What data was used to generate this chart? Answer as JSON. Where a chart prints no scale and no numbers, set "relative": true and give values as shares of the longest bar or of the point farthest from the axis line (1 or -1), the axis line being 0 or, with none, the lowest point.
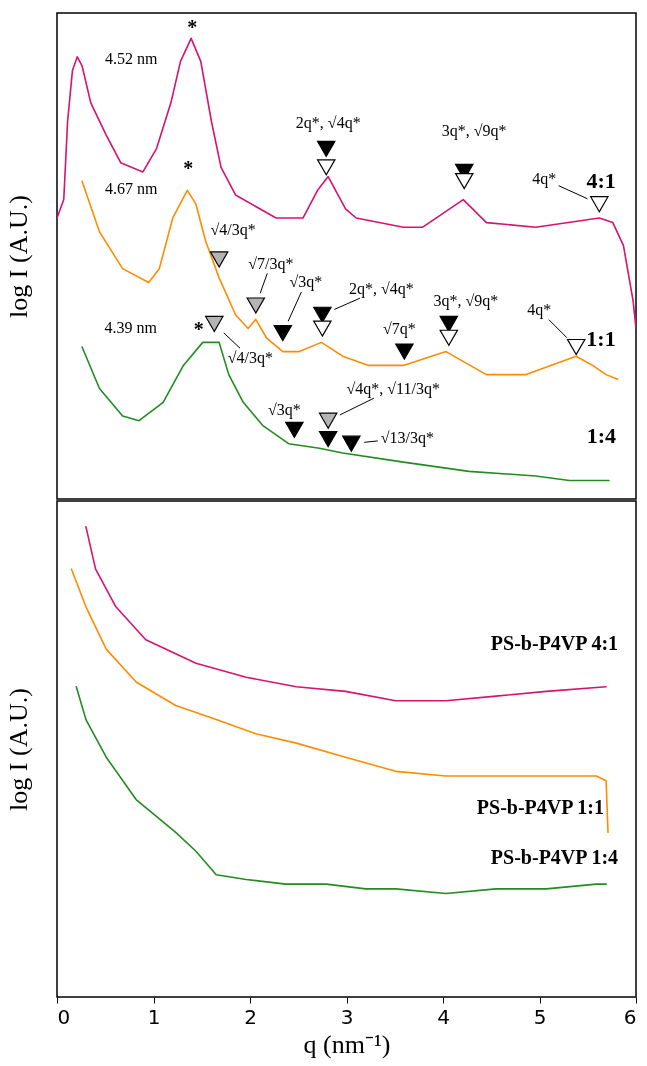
{
  "chart_data": [
    {
      "type": "line",
      "ylabel": "log I (A.U.)",
      "xlim": [
        0,
        6
      ],
      "tick_labels": false,
      "relative": true,
      "series": [
        {
          "name": "4:1",
          "color": "#d6136f",
          "x": [
            0,
            0.07,
            0.11,
            0.16,
            0.21,
            0.26,
            0.35,
            0.51,
            0.66,
            0.89,
            1.03,
            1.18,
            1.28,
            1.39,
            1.49,
            1.6,
            1.7,
            1.85,
            2.27,
            2.55,
            2.7,
            2.81,
            2.99,
            3.1,
            3.59,
            3.79,
            4.21,
            4.45,
            4.96,
            5.62,
            5.76,
            5.87,
            5.97,
            6.0
          ],
          "values": [
            0.61,
            0.65,
            0.82,
            0.93,
            0.96,
            0.94,
            0.86,
            0.79,
            0.73,
            0.71,
            0.76,
            0.86,
            0.95,
            1,
            0.95,
            0.82,
            0.72,
            0.66,
            0.61,
            0.61,
            0.67,
            0.7,
            0.63,
            0.61,
            0.59,
            0.59,
            0.65,
            0.6,
            0.59,
            0.61,
            0.6,
            0.55,
            0.43,
            0.37
          ]
        },
        {
          "name": "1:1",
          "color": "#ff8c00",
          "x": [
            0.26,
            0.44,
            0.68,
            0.95,
            1.06,
            1.2,
            1.35,
            1.44,
            1.54,
            1.68,
            1.85,
            1.98,
            2.06,
            2.17,
            2.34,
            2.51,
            2.74,
            2.96,
            3.23,
            3.59,
            4.03,
            4.45,
            4.86,
            5.38,
            5.55,
            5.69,
            5.81
          ],
          "values": [
            0.69,
            0.58,
            0.5,
            0.47,
            0.5,
            0.61,
            0.67,
            0.64,
            0.56,
            0.48,
            0.4,
            0.37,
            0.39,
            0.35,
            0.32,
            0.32,
            0.34,
            0.31,
            0.29,
            0.29,
            0.32,
            0.27,
            0.27,
            0.31,
            0.29,
            0.27,
            0.26
          ]
        },
        {
          "name": "1:4",
          "color": "#228b22",
          "x": [
            0.26,
            0.44,
            0.68,
            0.85,
            1.1,
            1.31,
            1.51,
            1.68,
            1.78,
            1.93,
            2.13,
            2.4,
            2.72,
            2.96,
            3.59,
            4.27,
            4.96,
            5.31,
            5.72
          ],
          "values": [
            0.33,
            0.24,
            0.18,
            0.17,
            0.21,
            0.29,
            0.34,
            0.34,
            0.27,
            0.21,
            0.16,
            0.12,
            0.11,
            0.1,
            0.08,
            0.06,
            0.05,
            0.04,
            0.04
          ]
        },
        {
          "type": "scatter",
          "marker": "triangle",
          "color": "#000000",
          "x": [
            2.79,
            4.22,
            2.34,
            2.75,
            3.6,
            4.06,
            2.46,
            2.81,
            3.05
          ],
          "values": [
            0.76,
            0.71,
            0.36,
            0.4,
            0.32,
            0.38,
            0.15,
            0.13,
            0.12
          ]
        },
        {
          "type": "scatter",
          "marker": "triangle",
          "color": "#ffffff",
          "x": [
            2.79,
            4.22,
            5.62,
            2.75,
            4.06,
            5.38
          ],
          "values": [
            0.72,
            0.69,
            0.64,
            0.37,
            0.35,
            0.33
          ]
        },
        {
          "type": "scatter",
          "marker": "triangle",
          "color": "#b4b4b4",
          "x": [
            1.68,
            2.06,
            1.63,
            2.81
          ],
          "values": [
            0.52,
            0.42,
            0.38,
            0.17
          ]
        }
      ],
      "annotations": [
        {
          "text": "4.52 nm",
          "x": 1.39,
          "y": 1
        },
        {
          "text": "4.67 nm",
          "x": 1.35,
          "y": 0.67
        },
        {
          "text": "4.39 nm",
          "x": 1.51,
          "y": 0.34
        },
        {
          "text": "*",
          "x": 1.39,
          "y": 1
        },
        {
          "text": "*",
          "x": 1.35,
          "y": 0.67
        },
        {
          "text": "*",
          "x": 1.51,
          "y": 0.34
        },
        {
          "text": "2q*, √4q*",
          "x": 2.79,
          "y": 0.76
        },
        {
          "text": "3q*, √9q*",
          "x": 4.22,
          "y": 0.71
        },
        {
          "text": "4q*",
          "x": 5.62,
          "y": 0.64
        },
        {
          "text": "√4/3q*",
          "x": 1.68,
          "y": 0.52
        },
        {
          "text": "√7/3q*",
          "x": 2.06,
          "y": 0.42
        },
        {
          "text": "√3q*",
          "x": 2.34,
          "y": 0.36
        },
        {
          "text": "2q*, √4q*",
          "x": 2.75,
          "y": 0.4
        },
        {
          "text": "√7q*",
          "x": 3.6,
          "y": 0.32
        },
        {
          "text": "3q*, √9q*",
          "x": 4.06,
          "y": 0.38
        },
        {
          "text": "4q*",
          "x": 5.38,
          "y": 0.33
        },
        {
          "text": "√4/3q*",
          "x": 1.63,
          "y": 0.38
        },
        {
          "text": "√3q*",
          "x": 2.46,
          "y": 0.15
        },
        {
          "text": "√4q*, √11/3q*",
          "x": 2.81,
          "y": 0.17
        },
        {
          "text": "√13/3q*",
          "x": 3.05,
          "y": 0.12
        }
      ]
    },
    {
      "type": "line",
      "xlabel": "q (nm⁻¹)",
      "ylabel": "log I (A.U.)",
      "xlim": [
        0,
        6
      ],
      "xticks": [
        0,
        1,
        2,
        3,
        4,
        5,
        6
      ],
      "tick_labels": "x",
      "relative": true,
      "series": [
        {
          "name": "PS-b-P4VP 4:1",
          "color": "#d6136f",
          "x": [
            0.3,
            0.4,
            0.61,
            0.92,
            1.44,
            1.96,
            2.48,
            2.99,
            3.51,
            4.03,
            4.55,
            5.07,
            5.69
          ],
          "values": [
            1,
            0.91,
            0.83,
            0.76,
            0.71,
            0.68,
            0.66,
            0.65,
            0.63,
            0.63,
            0.64,
            0.65,
            0.66
          ]
        },
        {
          "name": "PS-b-P4VP 1:1",
          "color": "#ff8c00",
          "x": [
            0.15,
            0.3,
            0.51,
            0.82,
            1.23,
            1.65,
            2.06,
            2.48,
            2.99,
            3.51,
            4.03,
            4.55,
            5.07,
            5.59,
            5.69,
            5.71
          ],
          "values": [
            0.91,
            0.83,
            0.74,
            0.67,
            0.62,
            0.59,
            0.56,
            0.54,
            0.51,
            0.48,
            0.47,
            0.47,
            0.47,
            0.47,
            0.46,
            0.35
          ]
        },
        {
          "name": "PS-b-P4VP 1:4",
          "color": "#228b22",
          "x": [
            0.2,
            0.3,
            0.51,
            0.82,
            1.23,
            1.44,
            1.65,
            1.96,
            2.37,
            2.79,
            3.2,
            3.51,
            4.03,
            4.55,
            5.07,
            5.59,
            5.69
          ],
          "values": [
            0.66,
            0.59,
            0.51,
            0.42,
            0.35,
            0.31,
            0.26,
            0.25,
            0.24,
            0.24,
            0.23,
            0.23,
            0.22,
            0.23,
            0.23,
            0.24,
            0.24
          ]
        }
      ]
    }
  ]
}
